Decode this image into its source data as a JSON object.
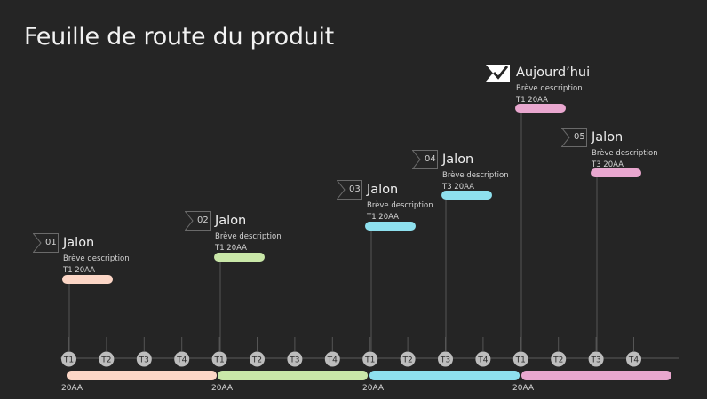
{
  "title": "Feuille de route du produit",
  "quarters": [
    "T1",
    "T2",
    "T3",
    "T4",
    "T1",
    "T2",
    "T3",
    "T4",
    "T1",
    "T2",
    "T3",
    "T4",
    "T1",
    "T2",
    "T3",
    "T4"
  ],
  "years": [
    "20AA",
    "20AA",
    "20AA",
    "20AA"
  ],
  "segment_colors": [
    "#fcd6c6",
    "#c9e7a8",
    "#8ee0ee",
    "#e9a7cf"
  ],
  "milestones": [
    {
      "number": "01",
      "name": "Jalon",
      "description": "Brève description",
      "date": "T1 20AA",
      "color": "#fcd6c6"
    },
    {
      "number": "02",
      "name": "Jalon",
      "description": "Brève description",
      "date": "T1 20AA",
      "color": "#c9e7a8"
    },
    {
      "number": "03",
      "name": "Jalon",
      "description": "Brève description",
      "date": "T1 20AA",
      "color": "#8ee0ee"
    },
    {
      "number": "04",
      "name": "Jalon",
      "description": "Brève description",
      "date": "T3 20AA",
      "color": "#8ee0ee"
    },
    {
      "number": "05",
      "name": "Jalon",
      "description": "Brève description",
      "date": "T3 20AA",
      "color": "#e9a7cf"
    }
  ],
  "today": {
    "name": "Aujourd’hui",
    "description": "Brève description",
    "date": "T1 20AA",
    "color": "#e9a7cf",
    "icon": "check-flag-icon"
  }
}
